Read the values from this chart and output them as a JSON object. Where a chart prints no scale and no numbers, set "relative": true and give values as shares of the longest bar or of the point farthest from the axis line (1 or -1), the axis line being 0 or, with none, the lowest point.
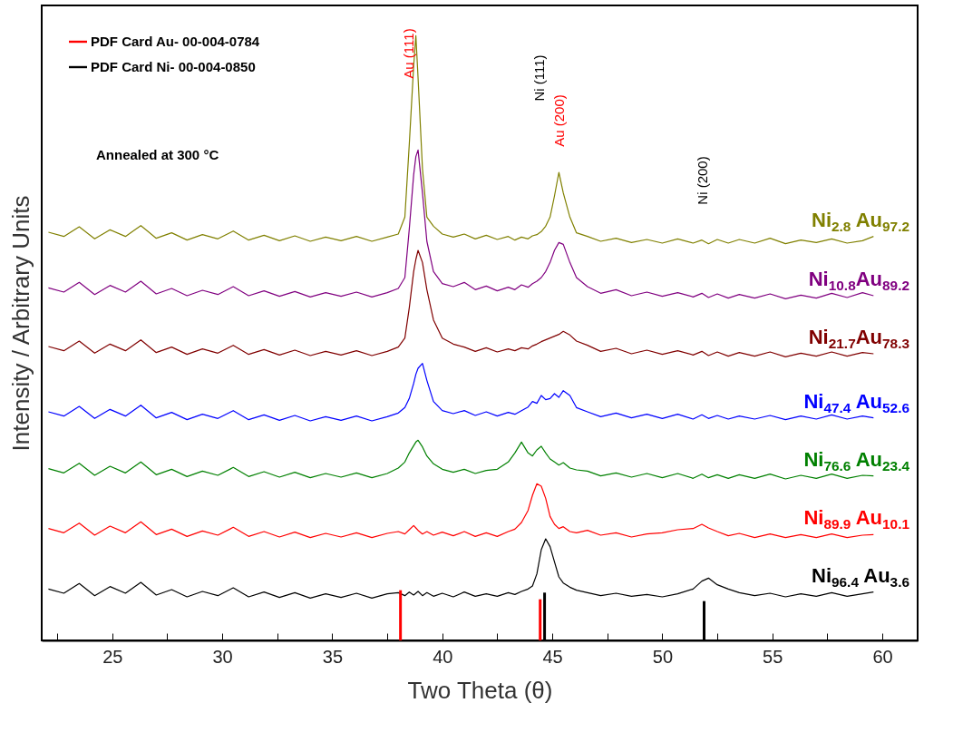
{
  "chart_data": {
    "type": "line",
    "relative": true,
    "xlabel": "Two Theta (θ)",
    "ylabel": "Intensity / Arbitrary Units",
    "legend": "top left",
    "xlim": [
      22,
      61.4
    ],
    "xticks": [
      {
        "value": 22.5,
        "label": null
      },
      25,
      {
        "value": 27.5,
        "label": null
      },
      30,
      {
        "value": 32.5,
        "label": null
      },
      35,
      {
        "value": 37.5,
        "label": null
      },
      40,
      {
        "value": 42.5,
        "label": null
      },
      45,
      {
        "value": 47.5,
        "label": null
      },
      50,
      {
        "value": 52.5,
        "label": null
      },
      55,
      {
        "value": 57.5,
        "label": null
      },
      60
    ],
    "x": [
      22.1,
      22.8,
      23.5,
      24.2,
      24.9,
      25.6,
      26.3,
      27,
      27.7,
      28.4,
      29.1,
      29.8,
      30.5,
      31.2,
      31.9,
      32.6,
      33.3,
      34,
      34.7,
      35.4,
      36.1,
      36.8,
      37.5,
      38,
      38.3,
      38.5,
      38.7,
      38.8,
      38.9,
      39.1,
      39.3,
      39.6,
      40,
      40.5,
      41,
      41.5,
      42,
      42.5,
      43,
      43.3,
      43.6,
      43.9,
      44.1,
      44.3,
      44.5,
      44.7,
      44.9,
      45.1,
      45.3,
      45.5,
      45.8,
      46.1,
      46.6,
      47.2,
      47.9,
      48.6,
      49.3,
      50,
      50.7,
      51.4,
      51.8,
      52.1,
      52.5,
      53,
      53.5,
      54.2,
      54.9,
      55.6,
      56.3,
      57,
      57.7,
      58.4,
      59.1,
      59.6
    ],
    "series": [
      {
        "name": "Ni$_{2.8}$ Au$_{97.2}$",
        "color": "#808000",
        "values": [
          0.675,
          0.668,
          0.684,
          0.664,
          0.679,
          0.668,
          0.686,
          0.665,
          0.674,
          0.662,
          0.671,
          0.664,
          0.677,
          0.662,
          0.67,
          0.661,
          0.669,
          0.66,
          0.667,
          0.661,
          0.668,
          0.66,
          0.667,
          0.672,
          0.7,
          0.82,
          0.95,
          1,
          0.93,
          0.78,
          0.7,
          0.685,
          0.672,
          0.667,
          0.672,
          0.664,
          0.67,
          0.663,
          0.668,
          0.662,
          0.667,
          0.664,
          0.669,
          0.671,
          0.676,
          0.685,
          0.7,
          0.735,
          0.774,
          0.74,
          0.7,
          0.674,
          0.668,
          0.66,
          0.665,
          0.658,
          0.663,
          0.657,
          0.664,
          0.657,
          0.662,
          0.656,
          0.663,
          0.657,
          0.663,
          0.657,
          0.665,
          0.656,
          0.662,
          0.658,
          0.664,
          0.657,
          0.661,
          0.668
        ]
      },
      {
        "name": "Ni$_{10.8}$Au$_{89.2}$",
        "color": "#800080",
        "values": [
          0.583,
          0.576,
          0.592,
          0.572,
          0.587,
          0.576,
          0.594,
          0.573,
          0.582,
          0.57,
          0.579,
          0.572,
          0.585,
          0.57,
          0.578,
          0.569,
          0.577,
          0.568,
          0.575,
          0.569,
          0.576,
          0.568,
          0.575,
          0.582,
          0.6,
          0.68,
          0.77,
          0.8,
          0.811,
          0.74,
          0.66,
          0.61,
          0.59,
          0.585,
          0.592,
          0.58,
          0.586,
          0.578,
          0.584,
          0.58,
          0.588,
          0.584,
          0.59,
          0.594,
          0.6,
          0.61,
          0.625,
          0.645,
          0.658,
          0.655,
          0.625,
          0.6,
          0.585,
          0.574,
          0.58,
          0.57,
          0.576,
          0.569,
          0.575,
          0.568,
          0.574,
          0.567,
          0.573,
          0.566,
          0.572,
          0.566,
          0.573,
          0.565,
          0.571,
          0.566,
          0.574,
          0.567,
          0.575,
          0.57
        ]
      },
      {
        "name": "Ni$_{21.7}$Au$_{78.3}$",
        "color": "#800000",
        "values": [
          0.486,
          0.479,
          0.495,
          0.475,
          0.49,
          0.479,
          0.497,
          0.476,
          0.485,
          0.473,
          0.482,
          0.475,
          0.488,
          0.473,
          0.481,
          0.472,
          0.48,
          0.471,
          0.478,
          0.472,
          0.479,
          0.471,
          0.478,
          0.485,
          0.5,
          0.55,
          0.61,
          0.63,
          0.645,
          0.625,
          0.58,
          0.53,
          0.5,
          0.49,
          0.485,
          0.478,
          0.484,
          0.477,
          0.482,
          0.479,
          0.484,
          0.482,
          0.487,
          0.49,
          0.494,
          0.497,
          0.5,
          0.503,
          0.506,
          0.511,
          0.505,
          0.495,
          0.488,
          0.478,
          0.483,
          0.474,
          0.48,
          0.473,
          0.479,
          0.472,
          0.478,
          0.471,
          0.477,
          0.47,
          0.476,
          0.47,
          0.477,
          0.469,
          0.475,
          0.47,
          0.477,
          0.47,
          0.476,
          0.474
        ]
      },
      {
        "name": "Ni$_{47.4}$ Au$_{52.6}$",
        "color": "#0000ff",
        "values": [
          0.378,
          0.371,
          0.387,
          0.367,
          0.382,
          0.371,
          0.389,
          0.368,
          0.377,
          0.365,
          0.374,
          0.367,
          0.38,
          0.365,
          0.373,
          0.364,
          0.372,
          0.363,
          0.37,
          0.364,
          0.371,
          0.363,
          0.37,
          0.376,
          0.385,
          0.4,
          0.425,
          0.44,
          0.45,
          0.458,
          0.43,
          0.395,
          0.38,
          0.375,
          0.38,
          0.372,
          0.378,
          0.371,
          0.377,
          0.374,
          0.38,
          0.386,
          0.395,
          0.392,
          0.405,
          0.398,
          0.4,
          0.408,
          0.402,
          0.413,
          0.405,
          0.385,
          0.378,
          0.37,
          0.376,
          0.368,
          0.374,
          0.367,
          0.374,
          0.366,
          0.373,
          0.367,
          0.372,
          0.366,
          0.371,
          0.366,
          0.372,
          0.365,
          0.371,
          0.366,
          0.373,
          0.366,
          0.371,
          0.368
        ]
      },
      {
        "name": "Ni$_{76.6}$ Au$_{23.4}$",
        "color": "#008000",
        "values": [
          0.284,
          0.277,
          0.293,
          0.273,
          0.288,
          0.277,
          0.295,
          0.274,
          0.283,
          0.271,
          0.28,
          0.273,
          0.286,
          0.271,
          0.279,
          0.27,
          0.278,
          0.269,
          0.276,
          0.27,
          0.277,
          0.269,
          0.276,
          0.285,
          0.295,
          0.31,
          0.322,
          0.328,
          0.331,
          0.32,
          0.305,
          0.292,
          0.283,
          0.278,
          0.283,
          0.276,
          0.281,
          0.283,
          0.295,
          0.31,
          0.328,
          0.31,
          0.305,
          0.315,
          0.321,
          0.31,
          0.3,
          0.295,
          0.29,
          0.294,
          0.285,
          0.282,
          0.28,
          0.272,
          0.277,
          0.27,
          0.276,
          0.269,
          0.276,
          0.268,
          0.275,
          0.269,
          0.274,
          0.268,
          0.274,
          0.268,
          0.275,
          0.267,
          0.273,
          0.268,
          0.275,
          0.268,
          0.273,
          0.272
        ]
      },
      {
        "name": "Ni$_{89.9}$ Au$_{10.1}$",
        "color": "#ff0000",
        "values": [
          0.185,
          0.178,
          0.194,
          0.174,
          0.189,
          0.178,
          0.196,
          0.175,
          0.184,
          0.172,
          0.181,
          0.174,
          0.187,
          0.172,
          0.18,
          0.171,
          0.179,
          0.17,
          0.177,
          0.171,
          0.178,
          0.17,
          0.177,
          0.18,
          0.176,
          0.183,
          0.19,
          0.186,
          0.182,
          0.176,
          0.18,
          0.174,
          0.179,
          0.173,
          0.18,
          0.172,
          0.178,
          0.172,
          0.18,
          0.184,
          0.195,
          0.215,
          0.24,
          0.259,
          0.255,
          0.235,
          0.205,
          0.192,
          0.185,
          0.188,
          0.18,
          0.178,
          0.182,
          0.174,
          0.178,
          0.171,
          0.176,
          0.178,
          0.183,
          0.185,
          0.192,
          0.186,
          0.18,
          0.173,
          0.177,
          0.17,
          0.176,
          0.17,
          0.175,
          0.17,
          0.176,
          0.17,
          0.174,
          0.175
        ]
      },
      {
        "name": "Ni$_{96.4}$ Au$_{3.6}$",
        "color": "#000000",
        "values": [
          0.085,
          0.078,
          0.094,
          0.074,
          0.089,
          0.078,
          0.096,
          0.075,
          0.084,
          0.072,
          0.081,
          0.074,
          0.087,
          0.072,
          0.08,
          0.071,
          0.079,
          0.07,
          0.077,
          0.071,
          0.078,
          0.07,
          0.077,
          0.079,
          0.074,
          0.08,
          0.075,
          0.078,
          0.081,
          0.074,
          0.079,
          0.073,
          0.078,
          0.072,
          0.08,
          0.073,
          0.077,
          0.073,
          0.079,
          0.076,
          0.081,
          0.085,
          0.09,
          0.11,
          0.15,
          0.168,
          0.155,
          0.13,
          0.105,
          0.095,
          0.088,
          0.083,
          0.079,
          0.074,
          0.078,
          0.073,
          0.076,
          0.072,
          0.077,
          0.085,
          0.098,
          0.103,
          0.092,
          0.085,
          0.079,
          0.074,
          0.078,
          0.072,
          0.077,
          0.073,
          0.079,
          0.073,
          0.077,
          0.08
        ]
      },
      {
        "name": "PDF Card Au- 00-004-0784",
        "type": "bar",
        "color": "#ff0000",
        "x": [
          38.1,
          44.45
        ],
        "values": [
          0.083,
          0.068
        ]
      },
      {
        "name": "PDF Card Ni- 00-004-0850",
        "type": "bar",
        "color": "#000000",
        "x": [
          44.65,
          51.9
        ],
        "values": [
          0.079,
          0.065
        ]
      }
    ],
    "annotations": [
      "Au (111)",
      "Ni (111)",
      "Au (200)",
      "Ni (200)",
      "Annealed at 300 °C"
    ]
  }
}
